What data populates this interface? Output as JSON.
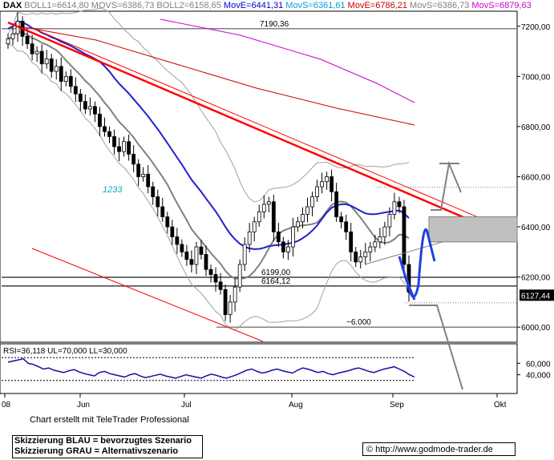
{
  "header": {
    "items": [
      {
        "text": "DAX",
        "color": "#000000"
      },
      {
        "text": "BOLL1=6614,80",
        "color": "#808080"
      },
      {
        "text": "MOVS=6386,73",
        "color": "#808080"
      },
      {
        "text": "BOLL2=6158,65",
        "color": "#808080"
      },
      {
        "text": "MovE=6441,31",
        "color": "#0000cc"
      },
      {
        "text": "MovS=6361,61",
        "color": "#00a0d0"
      },
      {
        "text": "MovE=6786,21",
        "color": "#cc0000"
      },
      {
        "text": "MovS=6386,73",
        "color": "#808080"
      },
      {
        "text": "MovS=6879,63",
        "color": "#cc00cc"
      }
    ]
  },
  "chart_data": {
    "type": "candlestick",
    "instrument": "DAX",
    "price_axis": {
      "ticks": [
        "7200,00",
        "7000,00",
        "6800,00",
        "6600,00",
        "6400,00",
        "6200,00",
        "6000,00"
      ],
      "ylim": [
        5940,
        7260
      ]
    },
    "time_axis": {
      "ticks": [
        "08",
        "Jun",
        "Jul",
        "Aug",
        "Sep",
        "Okt"
      ]
    },
    "levels": [
      {
        "label": "7190,36",
        "value": 7190.36
      },
      {
        "label": "6199,00",
        "value": 6199.0
      },
      {
        "label": "6164,12",
        "value": 6164.12
      },
      {
        "label": "~6.000",
        "value": 6000
      }
    ],
    "current_price": "6127,44",
    "annotation_1233": "1233",
    "ohlc_close": [
      7150,
      7170,
      7220,
      7160,
      7130,
      7090,
      7100,
      7050,
      7070,
      7020,
      7040,
      6980,
      7000,
      6960,
      6930,
      6900,
      6870,
      6880,
      6850,
      6800,
      6780,
      6760,
      6720,
      6700,
      6740,
      6690,
      6650,
      6600,
      6610,
      6560,
      6520,
      6480,
      6440,
      6400,
      6360,
      6330,
      6300,
      6270,
      6250,
      6320,
      6290,
      6230,
      6210,
      6180,
      6150,
      6050,
      6100,
      6160,
      6250,
      6330,
      6380,
      6420,
      6460,
      6490,
      6500,
      6380,
      6340,
      6300,
      6320,
      6400,
      6420,
      6450,
      6480,
      6520,
      6560,
      6580,
      6600,
      6540,
      6440,
      6420,
      6380,
      6300,
      6260,
      6280,
      6300,
      6320,
      6340,
      6360,
      6400,
      6450,
      6500,
      6480,
      6250,
      6140
    ],
    "rsi": {
      "label": "RSI=36,118 UL=70,000 LL=30,000",
      "upper": 70,
      "lower": 30,
      "ticks": [
        "60,000",
        "40,000"
      ],
      "values": [
        62,
        64,
        66,
        68,
        60,
        58,
        54,
        50,
        52,
        48,
        46,
        44,
        47,
        49,
        45,
        42,
        40,
        38,
        44,
        46,
        42,
        40,
        38,
        36,
        40,
        42,
        38,
        35,
        37,
        39,
        41,
        38,
        36,
        34,
        37,
        40,
        38,
        36,
        34,
        38,
        41,
        39,
        36,
        34,
        37,
        40,
        44,
        48,
        50,
        46,
        43,
        45,
        48,
        50,
        47,
        45,
        43,
        48,
        52,
        50,
        47,
        44,
        46,
        42,
        40,
        43,
        45,
        47,
        50,
        52,
        49,
        46,
        44,
        47,
        50,
        52,
        54,
        50,
        46,
        40,
        36
      ]
    },
    "scenarios": {
      "blue": "bevorzugtes Szenario",
      "gray": "Alternativszenario"
    }
  },
  "footer": {
    "credit": "Chart erstellt mit TeleTrader Professional",
    "legend_blue": "Skizzierung BLAU = bevorzugtes Szenario",
    "legend_gray": "Skizzierung GRAU = Alternativszenario",
    "url": "© http://www.godmode-trader.de"
  }
}
